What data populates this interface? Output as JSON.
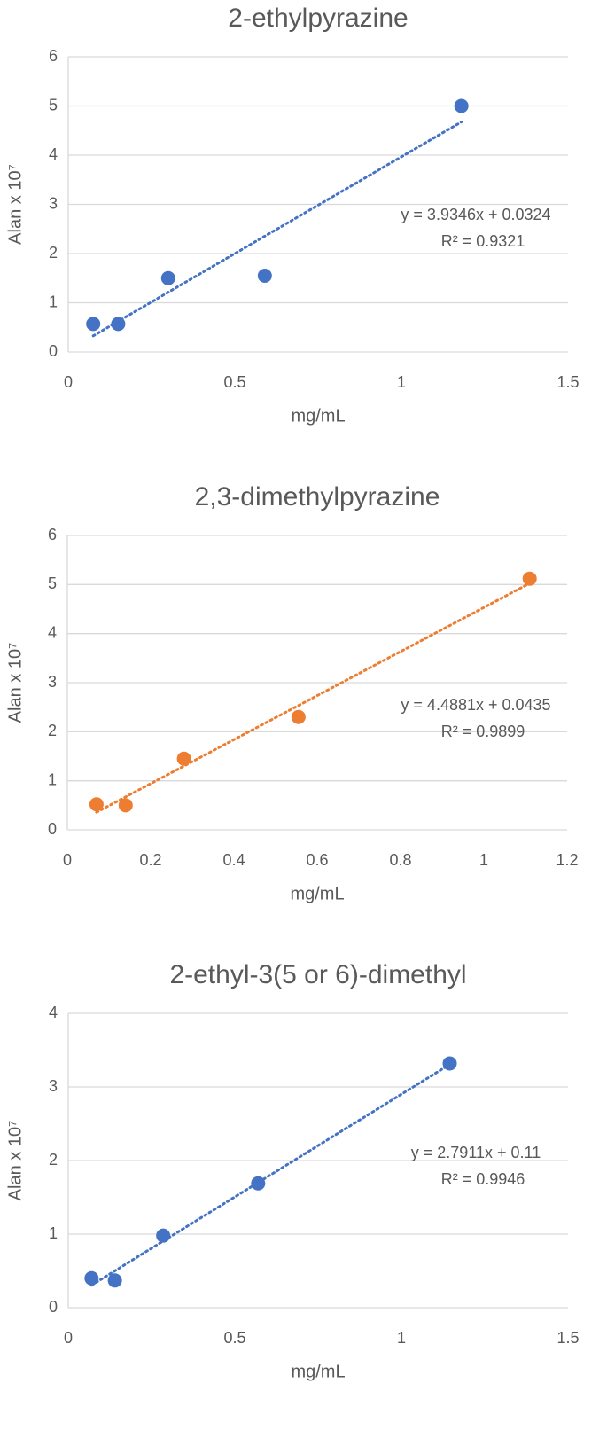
{
  "chart_data": [
    {
      "type": "scatter",
      "title": "2-ethylpyrazine",
      "x_label": "mg/mL",
      "y_label": "Alan x 10⁷",
      "color": "#4472c4",
      "x": [
        0.075,
        0.15,
        0.3,
        0.59,
        1.18
      ],
      "values": [
        0.57,
        0.57,
        1.5,
        1.55,
        5.0
      ],
      "xlim": [
        0,
        1.5
      ],
      "xticks": [
        0,
        0.5,
        1,
        1.5
      ],
      "ylim": [
        0,
        6
      ],
      "yticks": [
        0,
        1,
        2,
        3,
        4,
        5,
        6
      ],
      "grid": true,
      "trendline": {
        "slope": 3.9346,
        "intercept": 0.0324,
        "equation": "y = 3.9346x + 0.0324",
        "r2": "R² = 0.9321"
      }
    },
    {
      "type": "scatter",
      "title": "2,3-dimethylpyrazine",
      "x_label": "mg/mL",
      "y_label": "Alan x 10⁷",
      "color": "#ed7d31",
      "x": [
        0.07,
        0.14,
        0.28,
        0.555,
        1.11
      ],
      "values": [
        0.52,
        0.5,
        1.45,
        2.3,
        5.12
      ],
      "xlim": [
        0,
        1.2
      ],
      "xticks": [
        0,
        0.2,
        0.4,
        0.6,
        0.8,
        1,
        1.2
      ],
      "ylim": [
        0,
        6
      ],
      "yticks": [
        0,
        1,
        2,
        3,
        4,
        5,
        6
      ],
      "grid": true,
      "trendline": {
        "slope": 4.4881,
        "intercept": 0.0435,
        "equation": "y = 4.4881x + 0.0435",
        "r2": "R² = 0.9899"
      }
    },
    {
      "type": "scatter",
      "title": "2-ethyl-3(5 or 6)-dimethyl",
      "x_label": "mg/mL",
      "y_label": "Alan x 10⁷",
      "color": "#4472c4",
      "x": [
        0.07,
        0.14,
        0.285,
        0.57,
        1.145
      ],
      "values": [
        0.4,
        0.37,
        0.98,
        1.69,
        3.32
      ],
      "xlim": [
        0,
        1.5
      ],
      "xticks": [
        0,
        0.5,
        1,
        1.5
      ],
      "ylim": [
        0,
        4
      ],
      "yticks": [
        0,
        1,
        2,
        3,
        4
      ],
      "grid": true,
      "trendline": {
        "slope": 2.7911,
        "intercept": 0.11,
        "equation": "y = 2.7911x + 0.11",
        "r2": "R² = 0.9946"
      }
    }
  ]
}
